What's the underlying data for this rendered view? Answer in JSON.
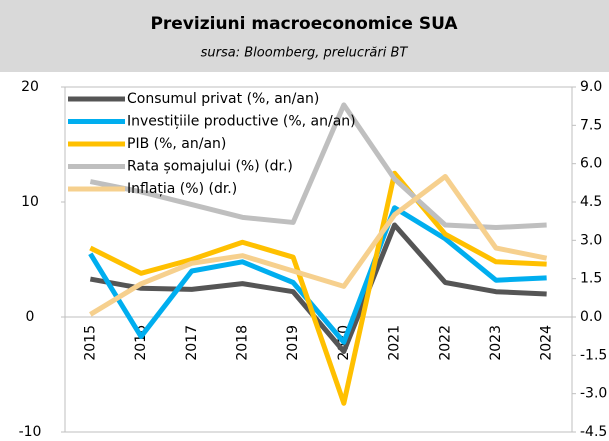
{
  "chart_data": {
    "type": "line",
    "title": "Previziuni macroeconomice SUA",
    "subtitle": "sursa: Bloomberg, prelucrări BT",
    "categories": [
      "2015",
      "2016",
      "2017",
      "2018",
      "2019",
      "2020",
      "2021",
      "2022",
      "2023",
      "2024"
    ],
    "series": [
      {
        "name": "Consumul privat (%, an/an)",
        "color": "#555555",
        "values": [
          3.3,
          2.5,
          2.4,
          2.9,
          2.2,
          -3.0,
          8.0,
          3.0,
          2.2,
          2.0
        ]
      },
      {
        "name": "Investițiile productive (%, an/an)",
        "color": "#00aeef",
        "values": [
          5.5,
          -1.7,
          4.0,
          4.8,
          3.0,
          -2.2,
          9.5,
          6.8,
          3.2,
          3.4
        ]
      },
      {
        "name": "PIB (%, an/an)",
        "color": "#ffc000",
        "values": [
          6.0,
          3.8,
          5.0,
          6.5,
          5.2,
          -7.5,
          12.5,
          7.2,
          4.8,
          4.6
        ]
      },
      {
        "name": "Rata șomajului (%) (dr.)",
        "color": "#bfbfbf",
        "axis": "y2",
        "values": [
          5.3,
          4.9,
          4.4,
          3.9,
          3.7,
          8.3,
          5.4,
          3.6,
          3.5,
          3.6
        ]
      },
      {
        "name": "Inflația (%) (dr.)",
        "color": "#f6d08e",
        "axis": "y2",
        "values": [
          0.1,
          1.3,
          2.1,
          2.4,
          1.8,
          1.2,
          4.0,
          5.5,
          2.7,
          2.3
        ]
      }
    ],
    "ylim": [
      -10,
      20
    ],
    "yticks": [
      -10,
      0,
      10,
      20
    ],
    "y2lim": [
      -4.5,
      9.0
    ],
    "y2ticks": [
      {
        "value": -4.5,
        "label": "-4.5"
      },
      {
        "value": -3.0,
        "label": "-3.0"
      },
      {
        "value": -1.5,
        "label": "-1.5"
      },
      {
        "value": 0,
        "label": "0.0"
      },
      {
        "value": 1.5,
        "label": "1.5"
      },
      {
        "value": 3.0,
        "label": "3.0"
      },
      {
        "value": 4.5,
        "label": "4.5"
      },
      {
        "value": 6.0,
        "label": "6.0"
      },
      {
        "value": 7.5,
        "label": "7.5"
      },
      {
        "value": 9.0,
        "label": "9.0"
      }
    ],
    "legend": "upper-left"
  }
}
